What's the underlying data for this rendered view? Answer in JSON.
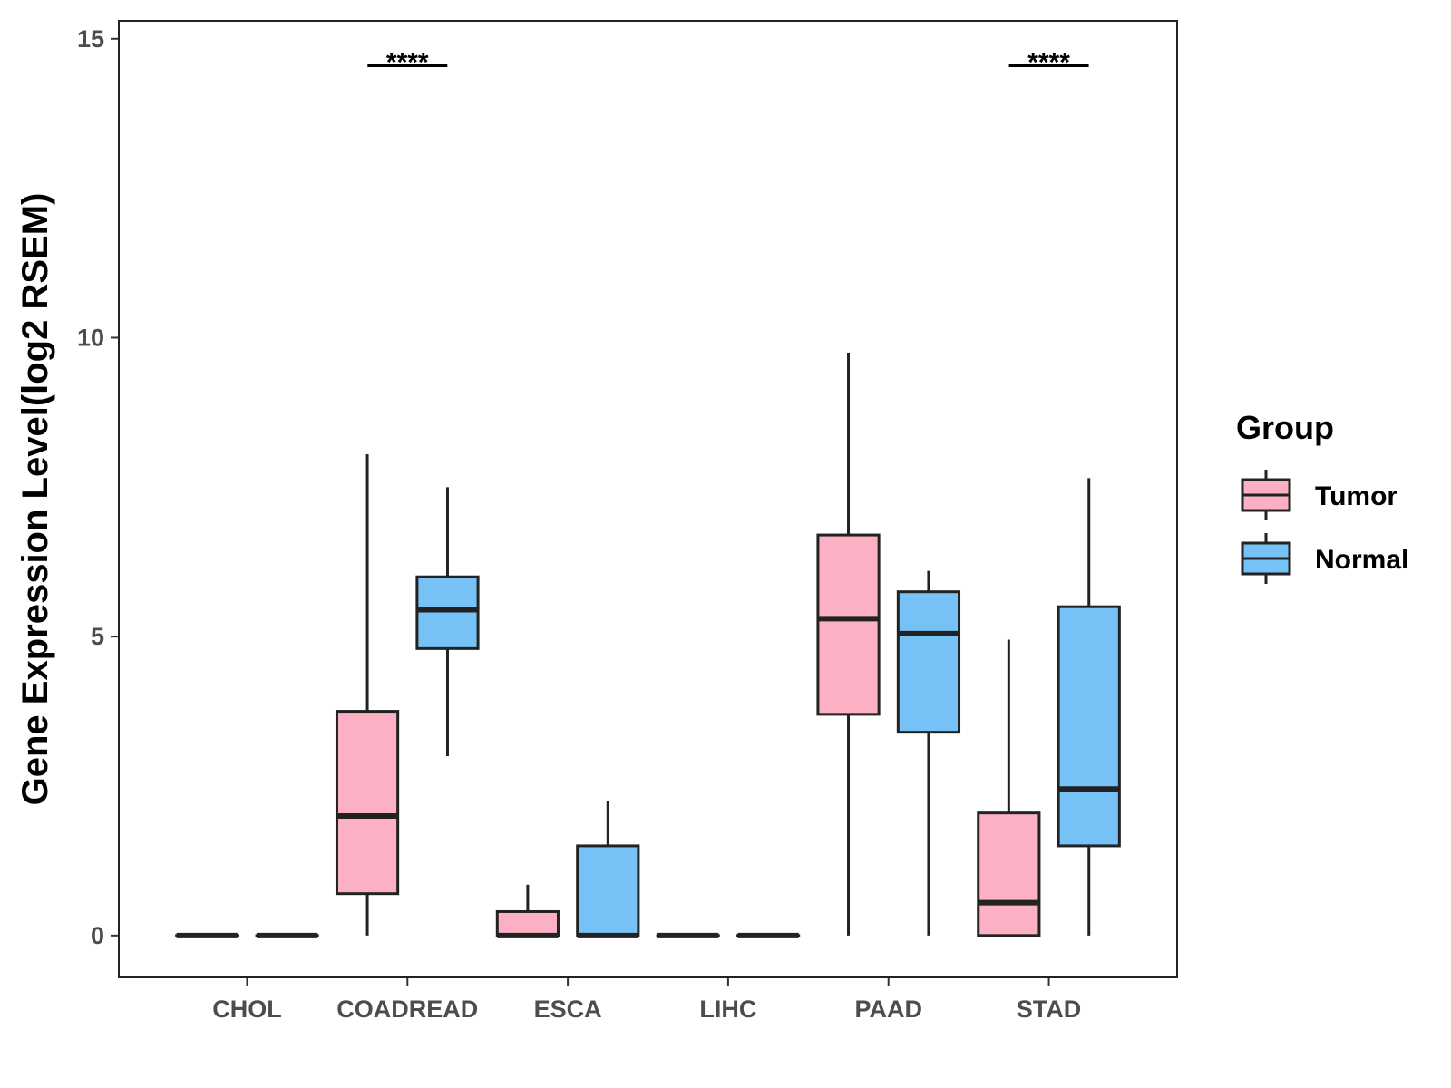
{
  "chart_data": {
    "type": "boxplot",
    "title": "",
    "xlabel": "",
    "ylabel": "Gene Expression Level(log2 RSEM)",
    "ylim": [
      -0.7,
      15.3
    ],
    "yticks": [
      0,
      5,
      10,
      15
    ],
    "categories": [
      "CHOL",
      "COADREAD",
      "ESCA",
      "LIHC",
      "PAAD",
      "STAD"
    ],
    "legend": {
      "title": "Group",
      "position": "right",
      "entries": [
        "Tumor",
        "Normal"
      ]
    },
    "colors": {
      "Tumor": "#fbb1c3",
      "Normal": "#76c2f6",
      "outline": "#222222"
    },
    "series": [
      {
        "name": "Tumor",
        "boxes": [
          {
            "category": "CHOL",
            "min": 0,
            "q1": 0,
            "median": 0,
            "q3": 0,
            "max": 0
          },
          {
            "category": "COADREAD",
            "min": 0,
            "q1": 0.7,
            "median": 2.0,
            "q3": 3.75,
            "max": 8.05
          },
          {
            "category": "ESCA",
            "min": 0,
            "q1": 0,
            "median": 0,
            "q3": 0.4,
            "max": 0.85
          },
          {
            "category": "LIHC",
            "min": 0,
            "q1": 0,
            "median": 0,
            "q3": 0,
            "max": 0
          },
          {
            "category": "PAAD",
            "min": 0,
            "q1": 3.7,
            "median": 5.3,
            "q3": 6.7,
            "max": 9.75
          },
          {
            "category": "STAD",
            "min": 0,
            "q1": 0,
            "median": 0.55,
            "q3": 2.05,
            "max": 4.95
          }
        ]
      },
      {
        "name": "Normal",
        "boxes": [
          {
            "category": "CHOL",
            "min": 0,
            "q1": 0,
            "median": 0,
            "q3": 0,
            "max": 0
          },
          {
            "category": "COADREAD",
            "min": 3.0,
            "q1": 4.8,
            "median": 5.45,
            "q3": 6.0,
            "max": 7.5
          },
          {
            "category": "ESCA",
            "min": 0,
            "q1": 0,
            "median": 0,
            "q3": 1.5,
            "max": 2.25
          },
          {
            "category": "LIHC",
            "min": 0,
            "q1": 0,
            "median": 0,
            "q3": 0,
            "max": 0
          },
          {
            "category": "PAAD",
            "min": 0,
            "q1": 3.4,
            "median": 5.05,
            "q3": 5.75,
            "max": 6.1
          },
          {
            "category": "STAD",
            "min": 0,
            "q1": 1.5,
            "median": 2.45,
            "q3": 5.5,
            "max": 7.65
          }
        ]
      }
    ],
    "annotations": [
      {
        "category": "COADREAD",
        "text": "****"
      },
      {
        "category": "STAD",
        "text": "****"
      }
    ]
  }
}
